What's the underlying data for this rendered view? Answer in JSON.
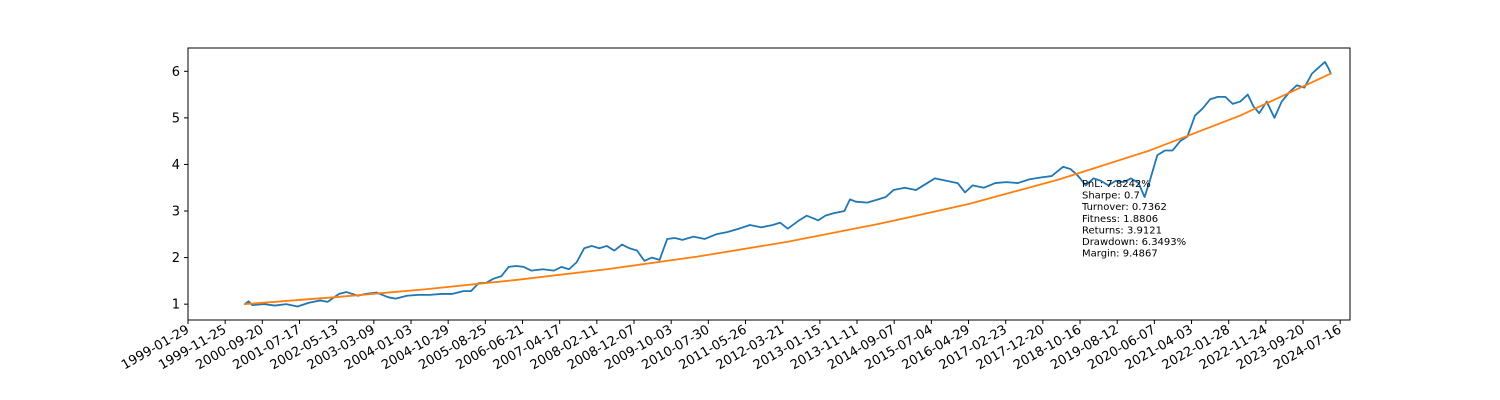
{
  "chart_data": {
    "type": "line",
    "title": "",
    "xlabel": "",
    "ylabel": "",
    "x_type": "date",
    "xlim": [
      "1999-01-29",
      "2024-10-03"
    ],
    "ylim": [
      0.66,
      6.5
    ],
    "grid": false,
    "legend": "none",
    "yticks": [
      1,
      2,
      3,
      4,
      5,
      6
    ],
    "xticks": [
      "1999-01-29",
      "1999-11-25",
      "2000-09-20",
      "2001-07-17",
      "2002-05-13",
      "2003-03-09",
      "2004-01-03",
      "2004-10-29",
      "2005-08-25",
      "2006-06-21",
      "2007-04-17",
      "2008-02-11",
      "2008-12-07",
      "2009-10-03",
      "2010-07-30",
      "2011-05-26",
      "2012-03-21",
      "2013-01-15",
      "2013-11-11",
      "2014-09-07",
      "2015-07-04",
      "2016-04-29",
      "2017-02-23",
      "2017-12-20",
      "2018-10-16",
      "2019-08-12",
      "2020-06-07",
      "2021-04-03",
      "2022-01-28",
      "2022-11-24",
      "2023-09-20",
      "2024-07-16"
    ],
    "series": [
      {
        "color": "#1f77b4",
        "points": [
          [
            "2000-05-01",
            1.0
          ],
          [
            "2000-06-01",
            1.06
          ],
          [
            "2000-07-01",
            0.98
          ],
          [
            "2000-10-01",
            1.0
          ],
          [
            "2001-01-01",
            0.97
          ],
          [
            "2001-04-01",
            1.0
          ],
          [
            "2001-07-01",
            0.95
          ],
          [
            "2001-10-01",
            1.03
          ],
          [
            "2002-01-01",
            1.08
          ],
          [
            "2002-03-01",
            1.05
          ],
          [
            "2002-06-01",
            1.22
          ],
          [
            "2002-08-01",
            1.26
          ],
          [
            "2002-11-01",
            1.18
          ],
          [
            "2003-01-01",
            1.22
          ],
          [
            "2003-04-01",
            1.25
          ],
          [
            "2003-07-01",
            1.15
          ],
          [
            "2003-09-01",
            1.12
          ],
          [
            "2003-12-01",
            1.18
          ],
          [
            "2004-03-01",
            1.2
          ],
          [
            "2004-06-01",
            1.2
          ],
          [
            "2004-09-01",
            1.22
          ],
          [
            "2004-12-01",
            1.22
          ],
          [
            "2005-03-01",
            1.28
          ],
          [
            "2005-05-01",
            1.28
          ],
          [
            "2005-07-01",
            1.45
          ],
          [
            "2005-09-01",
            1.46
          ],
          [
            "2005-11-01",
            1.55
          ],
          [
            "2006-01-01",
            1.6
          ],
          [
            "2006-03-01",
            1.8
          ],
          [
            "2006-05-01",
            1.82
          ],
          [
            "2006-07-01",
            1.8
          ],
          [
            "2006-09-01",
            1.72
          ],
          [
            "2006-12-01",
            1.75
          ],
          [
            "2007-03-01",
            1.72
          ],
          [
            "2007-05-01",
            1.8
          ],
          [
            "2007-07-01",
            1.75
          ],
          [
            "2007-09-01",
            1.9
          ],
          [
            "2007-11-01",
            2.2
          ],
          [
            "2008-01-01",
            2.25
          ],
          [
            "2008-03-01",
            2.2
          ],
          [
            "2008-05-01",
            2.25
          ],
          [
            "2008-07-01",
            2.15
          ],
          [
            "2008-09-01",
            2.28
          ],
          [
            "2008-11-01",
            2.2
          ],
          [
            "2009-01-01",
            2.15
          ],
          [
            "2009-03-01",
            1.93
          ],
          [
            "2009-05-01",
            2.0
          ],
          [
            "2009-07-01",
            1.95
          ],
          [
            "2009-09-01",
            2.4
          ],
          [
            "2009-11-01",
            2.42
          ],
          [
            "2010-01-01",
            2.38
          ],
          [
            "2010-04-01",
            2.45
          ],
          [
            "2010-07-01",
            2.4
          ],
          [
            "2010-10-01",
            2.5
          ],
          [
            "2011-01-01",
            2.55
          ],
          [
            "2011-04-01",
            2.62
          ],
          [
            "2011-07-01",
            2.7
          ],
          [
            "2011-10-01",
            2.65
          ],
          [
            "2012-01-01",
            2.7
          ],
          [
            "2012-03-01",
            2.75
          ],
          [
            "2012-05-01",
            2.62
          ],
          [
            "2012-08-01",
            2.8
          ],
          [
            "2012-10-01",
            2.9
          ],
          [
            "2013-01-01",
            2.8
          ],
          [
            "2013-03-01",
            2.9
          ],
          [
            "2013-05-01",
            2.95
          ],
          [
            "2013-08-01",
            3.0
          ],
          [
            "2013-09-15",
            3.25
          ],
          [
            "2013-11-01",
            3.2
          ],
          [
            "2014-02-01",
            3.18
          ],
          [
            "2014-05-01",
            3.25
          ],
          [
            "2014-07-01",
            3.3
          ],
          [
            "2014-09-01",
            3.45
          ],
          [
            "2014-12-01",
            3.5
          ],
          [
            "2015-03-01",
            3.45
          ],
          [
            "2015-06-01",
            3.6
          ],
          [
            "2015-08-01",
            3.7
          ],
          [
            "2015-11-01",
            3.65
          ],
          [
            "2016-02-01",
            3.6
          ],
          [
            "2016-04-01",
            3.4
          ],
          [
            "2016-06-01",
            3.55
          ],
          [
            "2016-09-01",
            3.5
          ],
          [
            "2016-12-01",
            3.6
          ],
          [
            "2017-03-01",
            3.62
          ],
          [
            "2017-06-01",
            3.6
          ],
          [
            "2017-09-01",
            3.68
          ],
          [
            "2017-12-01",
            3.72
          ],
          [
            "2018-03-01",
            3.75
          ],
          [
            "2018-06-01",
            3.95
          ],
          [
            "2018-08-01",
            3.9
          ],
          [
            "2018-10-01",
            3.75
          ],
          [
            "2018-12-01",
            3.55
          ],
          [
            "2019-02-01",
            3.7
          ],
          [
            "2019-04-01",
            3.65
          ],
          [
            "2019-06-01",
            3.55
          ],
          [
            "2019-08-01",
            3.65
          ],
          [
            "2019-10-01",
            3.62
          ],
          [
            "2019-12-01",
            3.7
          ],
          [
            "2020-02-01",
            3.6
          ],
          [
            "2020-03-20",
            3.3
          ],
          [
            "2020-05-01",
            3.65
          ],
          [
            "2020-07-01",
            4.2
          ],
          [
            "2020-09-01",
            4.3
          ],
          [
            "2020-11-01",
            4.3
          ],
          [
            "2021-01-01",
            4.5
          ],
          [
            "2021-03-01",
            4.6
          ],
          [
            "2021-05-01",
            5.05
          ],
          [
            "2021-07-01",
            5.2
          ],
          [
            "2021-09-01",
            5.4
          ],
          [
            "2021-11-01",
            5.45
          ],
          [
            "2022-01-01",
            5.45
          ],
          [
            "2022-03-01",
            5.3
          ],
          [
            "2022-05-01",
            5.35
          ],
          [
            "2022-07-01",
            5.5
          ],
          [
            "2022-08-15",
            5.25
          ],
          [
            "2022-10-01",
            5.1
          ],
          [
            "2022-12-01",
            5.35
          ],
          [
            "2023-02-01",
            5.0
          ],
          [
            "2023-04-01",
            5.35
          ],
          [
            "2023-06-01",
            5.55
          ],
          [
            "2023-08-01",
            5.7
          ],
          [
            "2023-10-01",
            5.65
          ],
          [
            "2023-12-01",
            5.95
          ],
          [
            "2024-02-01",
            6.1
          ],
          [
            "2024-03-15",
            6.2
          ],
          [
            "2024-04-15",
            6.05
          ],
          [
            "2024-05-01",
            5.95
          ]
        ]
      },
      {
        "color": "#ff7f0e",
        "points": [
          [
            "2000-05-01",
            1.0
          ],
          [
            "2002-05-01",
            1.15
          ],
          [
            "2004-05-01",
            1.32
          ],
          [
            "2006-05-01",
            1.52
          ],
          [
            "2008-05-01",
            1.75
          ],
          [
            "2010-05-01",
            2.02
          ],
          [
            "2012-05-01",
            2.34
          ],
          [
            "2014-05-01",
            2.72
          ],
          [
            "2016-05-01",
            3.15
          ],
          [
            "2018-05-01",
            3.68
          ],
          [
            "2020-05-01",
            4.3
          ],
          [
            "2022-05-01",
            5.05
          ],
          [
            "2024-05-01",
            5.95
          ]
        ]
      }
    ],
    "annotation": [
      "PnL: 7.8242%",
      "Sharpe: 0.7",
      "Turnover: 0.7362",
      "Fitness: 1.8806",
      "Returns: 3.9121",
      "Drawdown: 6.3493%",
      "Margin: 9.4867"
    ]
  }
}
